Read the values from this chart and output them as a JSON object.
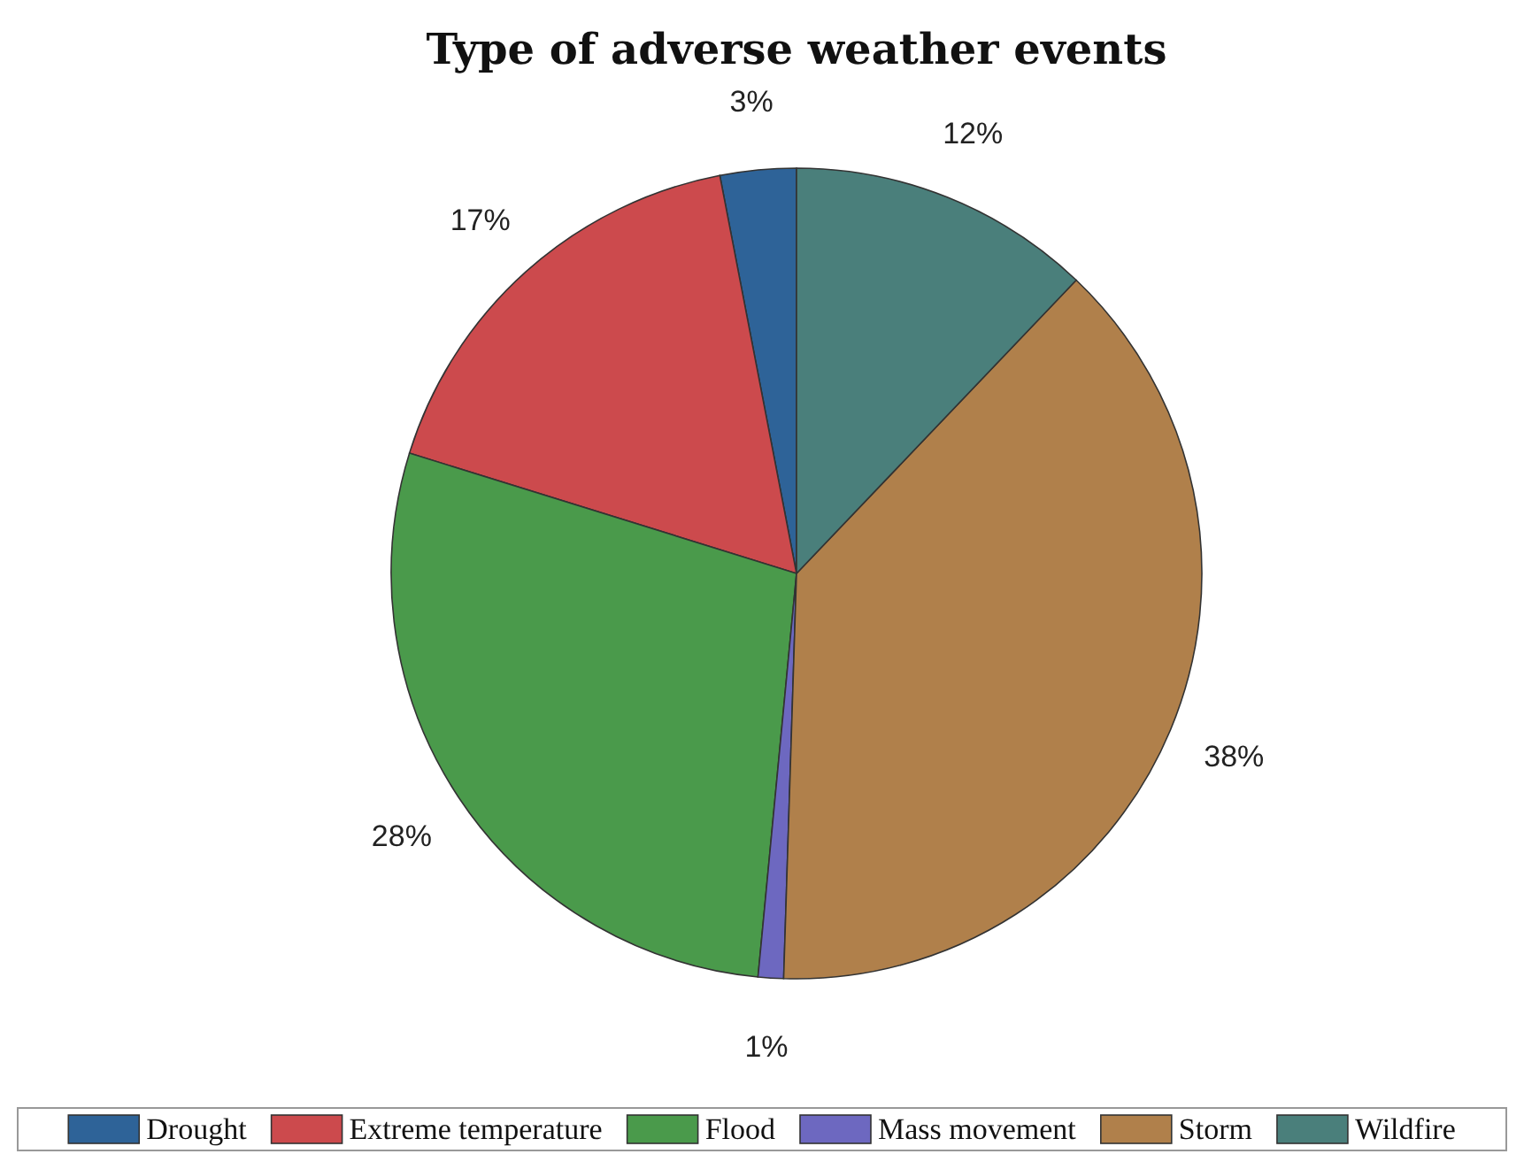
{
  "chart_data": {
    "type": "pie",
    "title": "Type of adverse weather events",
    "categories": [
      "Drought",
      "Extreme temperature",
      "Flood",
      "Mass movement",
      "Storm",
      "Wildfire"
    ],
    "values": [
      3,
      17,
      28,
      1,
      38,
      12
    ],
    "colors": [
      "#2e6398",
      "#cc4a4d",
      "#4a9a4b",
      "#6d68c0",
      "#b0804b",
      "#4a7f7b"
    ],
    "value_labels": [
      "3%",
      "17%",
      "28%",
      "1%",
      "38%",
      "12%"
    ],
    "legend": "bottom"
  }
}
